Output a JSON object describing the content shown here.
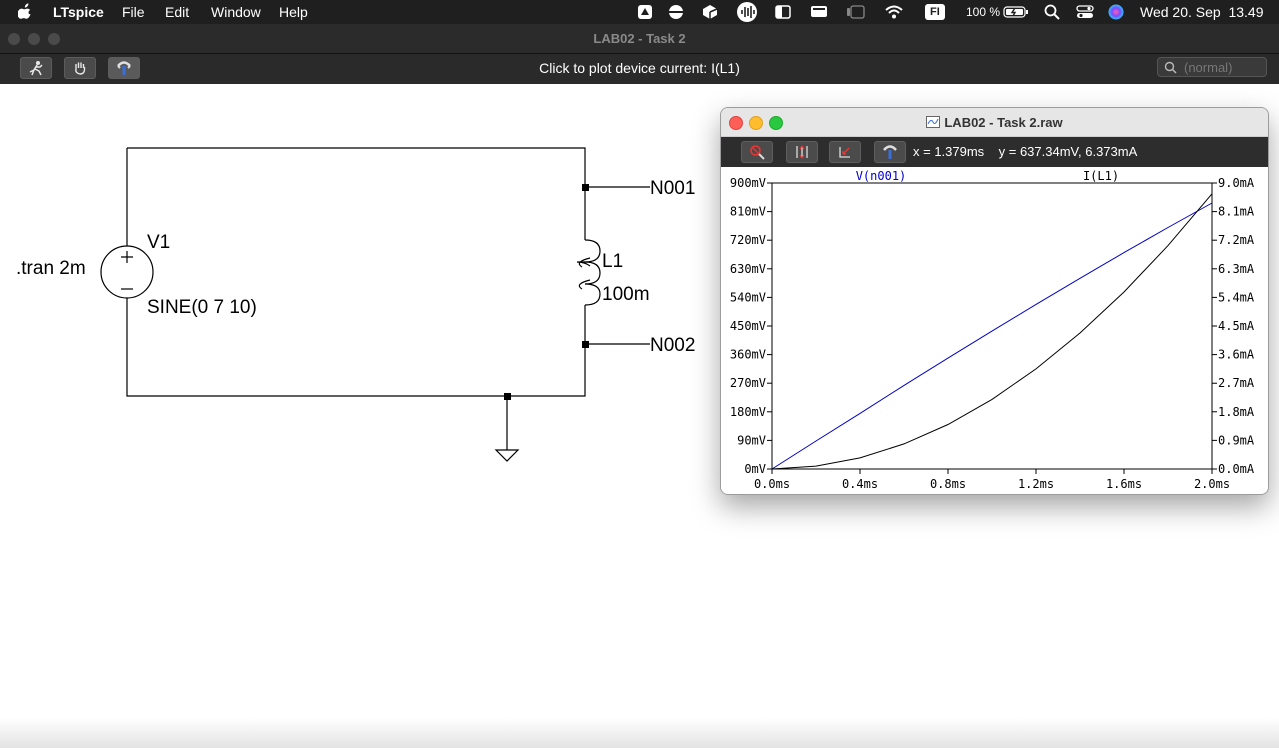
{
  "menubar": {
    "app": "LTspice",
    "items": [
      "File",
      "Edit",
      "Window",
      "Help"
    ],
    "keyboard": "FI",
    "battery": "100 %",
    "datetime": "Wed 20. Sep  13.49"
  },
  "window": {
    "title": "LAB02 - Task 2",
    "status": "Click to plot device current: I(L1)",
    "search_placeholder": "(normal)"
  },
  "schematic": {
    "directive": ".tran 2m",
    "source_name": "V1",
    "source_value": "SINE(0 7 10)",
    "inductor_name": "L1",
    "inductor_value": "100m",
    "net_top": "N001",
    "net_bottom": "N002"
  },
  "plot_window": {
    "title": "LAB02 - Task 2.raw",
    "cursor_readout": "x = 1.379ms    y = 637.34mV, 6.373mA"
  },
  "colors": {
    "voltage_trace": "#0000cc",
    "current_trace": "#000000"
  },
  "chart_data": {
    "type": "line",
    "x_ticks": [
      "0.0ms",
      "0.4ms",
      "0.8ms",
      "1.2ms",
      "1.6ms",
      "2.0ms"
    ],
    "y_left_ticks": [
      "0mV",
      "90mV",
      "180mV",
      "270mV",
      "360mV",
      "450mV",
      "540mV",
      "630mV",
      "720mV",
      "810mV",
      "900mV"
    ],
    "y_right_ticks": [
      "0.0mA",
      "0.9mA",
      "1.8mA",
      "2.7mA",
      "3.6mA",
      "4.5mA",
      "5.4mA",
      "6.3mA",
      "7.2mA",
      "8.1mA",
      "9.0mA"
    ],
    "xlim": [
      0,
      2
    ],
    "ylim_left": [
      0,
      900
    ],
    "ylim_right": [
      0,
      9
    ],
    "series": [
      {
        "name": "V(n001)",
        "axis": "left",
        "x": [
          0,
          0.2,
          0.4,
          0.6,
          0.8,
          1.0,
          1.2,
          1.4,
          1.6,
          1.8,
          2.0
        ],
        "y": [
          0,
          88,
          175,
          263,
          349,
          434,
          518,
          600,
          681,
          760,
          837
        ]
      },
      {
        "name": "I(L1)",
        "axis": "right",
        "x": [
          0,
          0.2,
          0.4,
          0.6,
          0.8,
          1.0,
          1.2,
          1.4,
          1.6,
          1.8,
          2.0
        ],
        "y": [
          0,
          0.09,
          0.35,
          0.79,
          1.4,
          2.19,
          3.15,
          4.28,
          5.57,
          7.03,
          8.66
        ]
      }
    ]
  }
}
